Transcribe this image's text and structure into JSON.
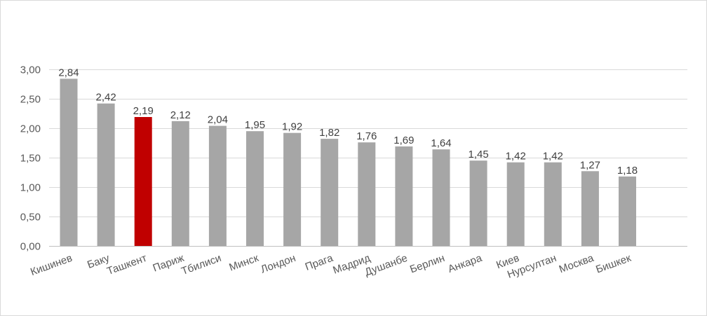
{
  "chart_data": {
    "type": "bar",
    "title": "",
    "xlabel": "",
    "ylabel": "",
    "ylim": [
      0,
      3
    ],
    "yticks": [
      "0,00",
      "0,50",
      "1,00",
      "1,50",
      "2,00",
      "2,50",
      "3,00"
    ],
    "ytick_values": [
      0,
      0.5,
      1,
      1.5,
      2,
      2.5,
      3
    ],
    "grid": true,
    "legend": "none",
    "categories": [
      "Кишинев",
      "Баку",
      "Ташкент",
      "Париж",
      "Тбилиси",
      "Минск",
      "Лондон",
      "Прага",
      "Мадрид",
      "Душанбе",
      "Берлин",
      "Анкара",
      "Киев",
      "Нурсултан",
      "Москва",
      "Бишкек"
    ],
    "values": [
      2.84,
      2.42,
      2.19,
      2.12,
      2.04,
      1.95,
      1.92,
      1.82,
      1.76,
      1.69,
      1.64,
      1.45,
      1.42,
      1.42,
      1.27,
      1.18
    ],
    "value_labels": [
      "2,84",
      "2,42",
      "2,19",
      "2,12",
      "2,04",
      "1,95",
      "1,92",
      "1,82",
      "1,76",
      "1,69",
      "1,64",
      "1,45",
      "1,42",
      "1,42",
      "1,27",
      "1,18"
    ],
    "bar_color": "#a6a6a6",
    "highlight_category": "Ташкент",
    "highlight_color": "#c00000",
    "gridline_color": "#d9d9d9"
  }
}
